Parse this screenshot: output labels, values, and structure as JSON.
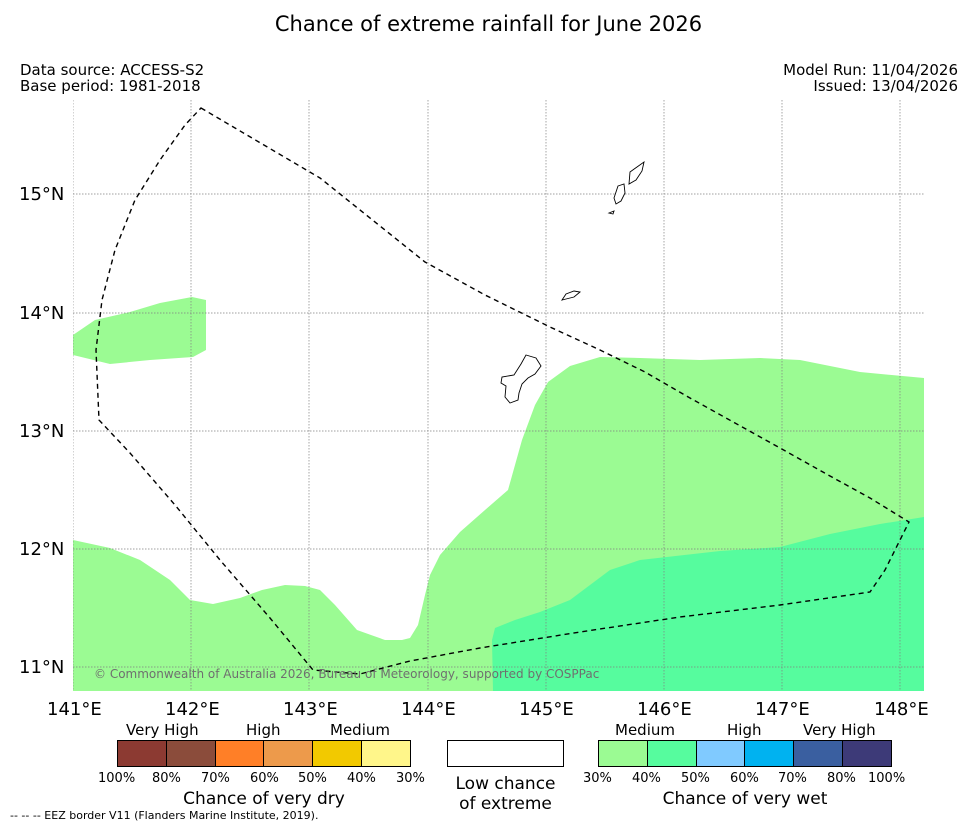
{
  "title": "Chance of extreme rainfall for June 2026",
  "meta": {
    "data_source": "Data source: ACCESS-S2",
    "base_period": "Base period: 1981-2018",
    "model_run": "Model Run: 11/04/2026",
    "issued": "Issued: 13/04/2026"
  },
  "map": {
    "x_ticks": [
      "141°E",
      "142°E",
      "143°E",
      "144°E",
      "145°E",
      "146°E",
      "147°E",
      "148°E"
    ],
    "y_ticks": [
      "15°N",
      "14°N",
      "13°N",
      "12°N",
      "11°N"
    ],
    "copyright": "© Commonwealth of Australia 2026, Bureau of Meteorology, supported by COSPPac",
    "colors": {
      "medium_wet": "#9bfb93",
      "high_wet": "#56fc9e",
      "land_outline": "#000000"
    }
  },
  "legend": {
    "dry": {
      "headings": [
        "Very High",
        "High",
        "Medium"
      ],
      "swatches": [
        "#8c3a32",
        "#8b4c3b",
        "#ff7f27",
        "#ed9a4b",
        "#f2c900",
        "#fff68a"
      ],
      "ticks": [
        "100%",
        "80%",
        "70%",
        "60%",
        "50%",
        "40%",
        "30%"
      ],
      "label": "Chance of very dry"
    },
    "low": {
      "line1": "Low chance",
      "line2": "of extreme"
    },
    "wet": {
      "headings": [
        "Medium",
        "High",
        "Very High"
      ],
      "swatches": [
        "#9bfb93",
        "#56fc9e",
        "#80caff",
        "#00b2f0",
        "#3a5fa0",
        "#3d3a78"
      ],
      "ticks": [
        "30%",
        "40%",
        "50%",
        "60%",
        "70%",
        "80%",
        "100%"
      ],
      "label": "Chance of very wet"
    }
  },
  "footnote": "--  --  -- EEZ border V11 (Flanders Marine Institute, 2019)."
}
